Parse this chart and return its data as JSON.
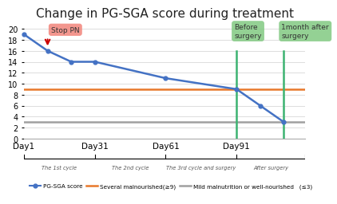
{
  "title": "Change in PG-SGA score during treatment",
  "title_fontsize": 11,
  "pg_sga_x": [
    1,
    11,
    21,
    31,
    61,
    91,
    101,
    111
  ],
  "pg_sga_y": [
    19,
    16,
    14,
    14,
    11,
    9,
    6,
    3
  ],
  "line_color": "#4472C4",
  "orange_line_y": 9,
  "orange_line_color": "#E8782A",
  "gray_line_y": 3,
  "gray_line_color": "#A0A0A0",
  "stop_pn_x": 11,
  "stop_pn_label": "Stop PN",
  "stop_pn_box_color": "#F28B82",
  "before_surgery_x": 91,
  "before_surgery_label": "Before\nsurgery",
  "after_surgery_x": 111,
  "after_surgery_label": "1month after\nsurgery",
  "green_color": "#82C982",
  "green_vline_color": "#3CB371",
  "xlim": [
    1,
    120
  ],
  "ylim": [
    0,
    21
  ],
  "ytick_step": 2,
  "xtick_labels": [
    "Day1",
    "Day31",
    "Day61",
    "Day91"
  ],
  "xtick_positions": [
    1,
    31,
    61,
    91
  ],
  "bg_color": "#FFFFFF",
  "grid_color": "#D8D8D8",
  "phase_labels": [
    "The 1st cycle",
    "The 2nd cycle",
    "The 3rd cycle and surgery",
    "After surgery"
  ],
  "phase_boundaries": [
    1,
    31,
    61,
    91,
    120
  ],
  "legend_entries": [
    "PG-SGA score",
    "Several malnourished(≥9)",
    "Mild malnutrition or well-nourished   (≤3)"
  ]
}
